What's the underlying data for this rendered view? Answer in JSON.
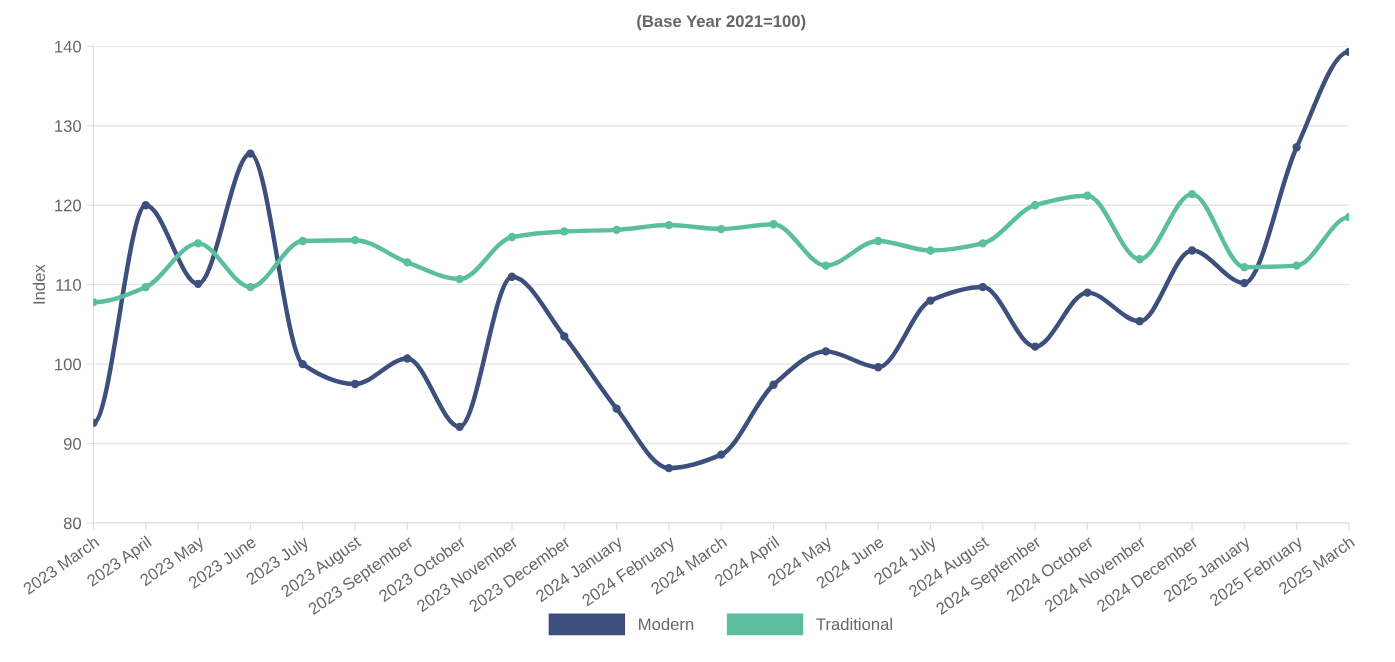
{
  "chart_data": {
    "type": "line",
    "title": "(Base Year 2021=100)",
    "ylabel": "Index",
    "categories": [
      "2023 March",
      "2023 April",
      "2023 May",
      "2023 June",
      "2023 July",
      "2023 August",
      "2023 September",
      "2023 October",
      "2023 November",
      "2023 December",
      "2024 January",
      "2024 February",
      "2024 March",
      "2024 April",
      "2024 May",
      "2024 June",
      "2024 July",
      "2024 August",
      "2024 September",
      "2024 October",
      "2024 November",
      "2024 December",
      "2025 January",
      "2025 February",
      "2025 March"
    ],
    "series": [
      {
        "name": "Modern",
        "color": "#3d4f7d",
        "values": [
          92.6,
          120.0,
          110.1,
          126.5,
          100.0,
          97.5,
          100.7,
          92.1,
          111.0,
          103.5,
          94.4,
          86.9,
          88.6,
          97.4,
          101.6,
          99.6,
          108.0,
          109.7,
          102.2,
          109.0,
          105.4,
          114.3,
          110.2,
          127.3,
          139.3
        ]
      },
      {
        "name": "Traditional",
        "color": "#5bbf9f",
        "values": [
          107.8,
          109.7,
          115.2,
          109.7,
          115.5,
          115.6,
          112.8,
          110.7,
          116.0,
          116.7,
          116.9,
          117.5,
          117.0,
          117.6,
          112.4,
          115.5,
          114.3,
          115.2,
          120.0,
          121.2,
          113.2,
          121.4,
          112.2,
          112.4,
          118.5
        ]
      }
    ],
    "ylim": [
      80,
      140
    ],
    "yticks": [
      80,
      90,
      100,
      110,
      120,
      130,
      140
    ],
    "grid": "y",
    "legend": "bottom",
    "marker": "circle",
    "line_style": "solid"
  }
}
